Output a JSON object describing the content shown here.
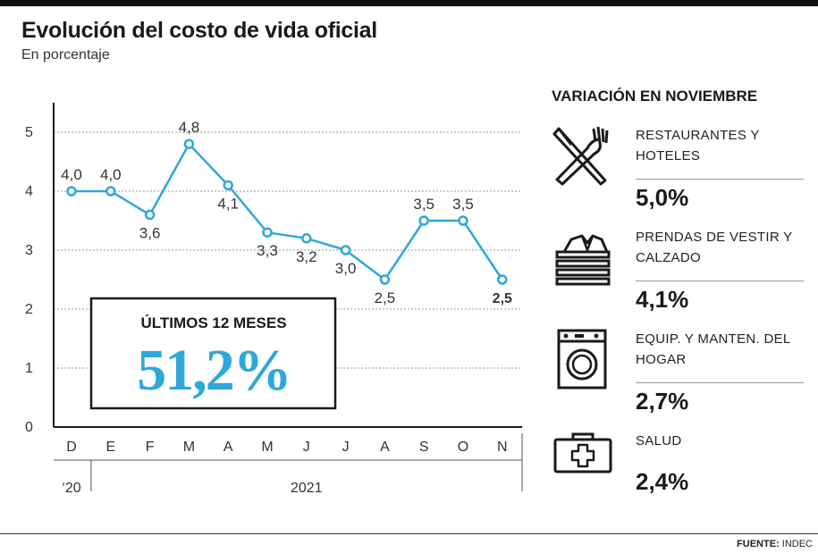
{
  "title": "Evolución del costo de vida oficial",
  "subtitle": "En porcentaje",
  "chart_data": {
    "type": "line",
    "title": "Evolución del costo de vida oficial",
    "subtitle": "En porcentaje",
    "categories": [
      "D",
      "E",
      "F",
      "M",
      "A",
      "M",
      "J",
      "J",
      "A",
      "S",
      "O",
      "N"
    ],
    "year_groups": [
      {
        "label": "‘20",
        "from": 0,
        "to": 0
      },
      {
        "label": "2021",
        "from": 1,
        "to": 11
      }
    ],
    "series": [
      {
        "values": [
          4.0,
          4.0,
          3.6,
          4.8,
          4.1,
          3.3,
          3.2,
          3.0,
          2.5,
          3.5,
          3.5,
          2.5
        ]
      }
    ],
    "data_labels": [
      "4,0",
      "4,0",
      "3,6",
      "4,8",
      "4,1",
      "3,3",
      "3,2",
      "3,0",
      "2,5",
      "3,5",
      "3,5",
      "2,5"
    ],
    "yticks": [
      "0",
      "1",
      "2",
      "3",
      "4",
      "5"
    ],
    "ylim": [
      0,
      5.5
    ],
    "grid": true,
    "line_color": "#2ea8d8"
  },
  "callout": {
    "label": "ÚLTIMOS 12 MESES",
    "value": "51,2%",
    "color": "#2ea8d8"
  },
  "panel": {
    "title": "VARIACIÓN EN NOVIEMBRE",
    "items": [
      {
        "icon": "utensils-icon",
        "label": "RESTAURANTES Y HOTELES",
        "value": "5,0%"
      },
      {
        "icon": "folded-clothes-icon",
        "label": "PRENDAS DE VESTIR Y CALZADO",
        "value": "4,1%"
      },
      {
        "icon": "washing-machine-icon",
        "label": "EQUIP. Y MANTEN. DEL HOGAR",
        "value": "2,7%"
      },
      {
        "icon": "first-aid-kit-icon",
        "label": "SALUD",
        "value": "2,4%"
      }
    ]
  },
  "source": {
    "label": "FUENTE:",
    "value": "INDEC"
  }
}
